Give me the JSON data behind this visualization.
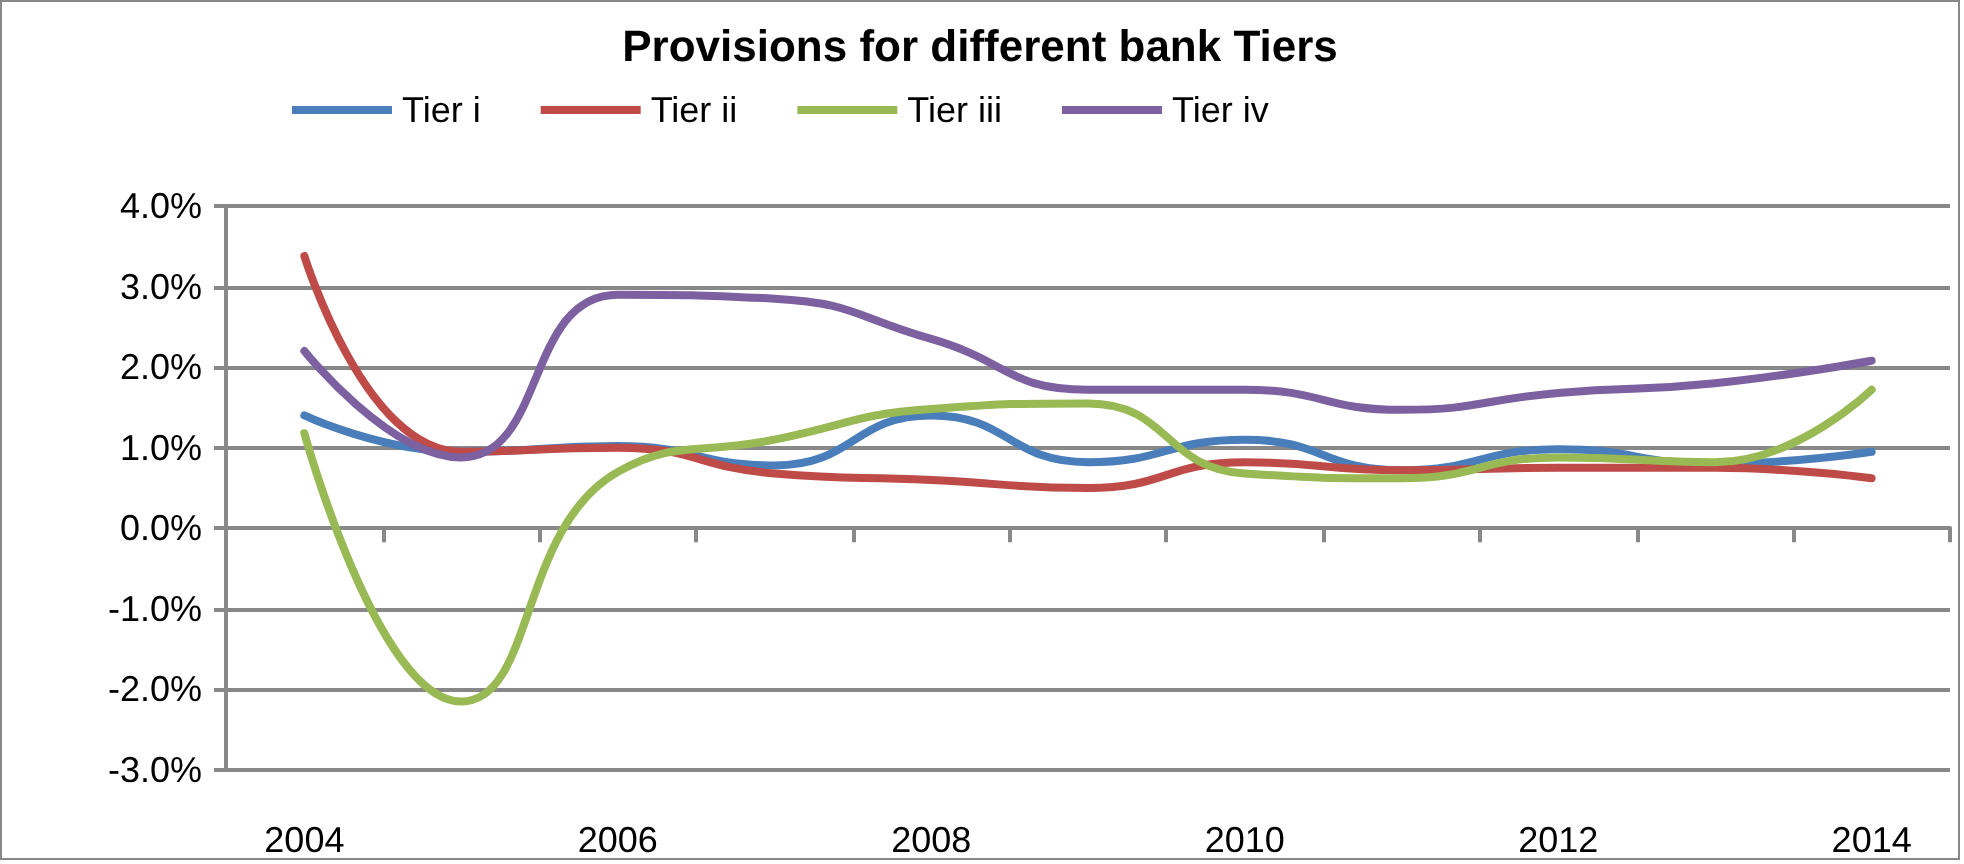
{
  "chart_data": {
    "type": "line",
    "title": "Provisions for different bank Tiers",
    "categories": [
      "2004",
      null,
      "2006",
      null,
      "2008",
      null,
      "2010",
      null,
      "2012",
      null,
      "2014"
    ],
    "series": [
      {
        "name": "Tier i",
        "color": "#4a7ebb",
        "values": [
          1.4,
          0.95,
          1.02,
          0.78,
          1.4,
          0.82,
          1.1,
          0.72,
          0.98,
          0.8,
          0.95
        ]
      },
      {
        "name": "Tier ii",
        "color": "#be4b48",
        "values": [
          3.38,
          0.95,
          1.0,
          0.68,
          0.6,
          0.5,
          0.82,
          0.72,
          0.75,
          0.75,
          0.62
        ]
      },
      {
        "name": "Tier iii",
        "color": "#98b954",
        "values": [
          1.18,
          -2.15,
          0.7,
          1.1,
          1.48,
          1.55,
          0.68,
          0.62,
          0.88,
          0.82,
          1.72
        ]
      },
      {
        "name": "Tier iv",
        "color": "#7d60a0",
        "values": [
          2.2,
          0.88,
          2.9,
          2.85,
          2.35,
          1.72,
          1.72,
          1.47,
          1.68,
          1.8,
          2.08
        ]
      }
    ],
    "ylim": [
      -3,
      4
    ],
    "yticks": [
      {
        "value": -3,
        "label": "-3.0%"
      },
      {
        "value": -2,
        "label": "-2.0%"
      },
      {
        "value": -1,
        "label": "-1.0%"
      },
      {
        "value": 0,
        "label": "0.0%"
      },
      {
        "value": 1,
        "label": "1.0%"
      },
      {
        "value": 2,
        "label": "2.0%"
      },
      {
        "value": 3,
        "label": "3.0%"
      },
      {
        "value": 4,
        "label": "4.0%"
      }
    ],
    "grid": "y",
    "legend": "top",
    "marker": "none",
    "line_style": "solid"
  }
}
